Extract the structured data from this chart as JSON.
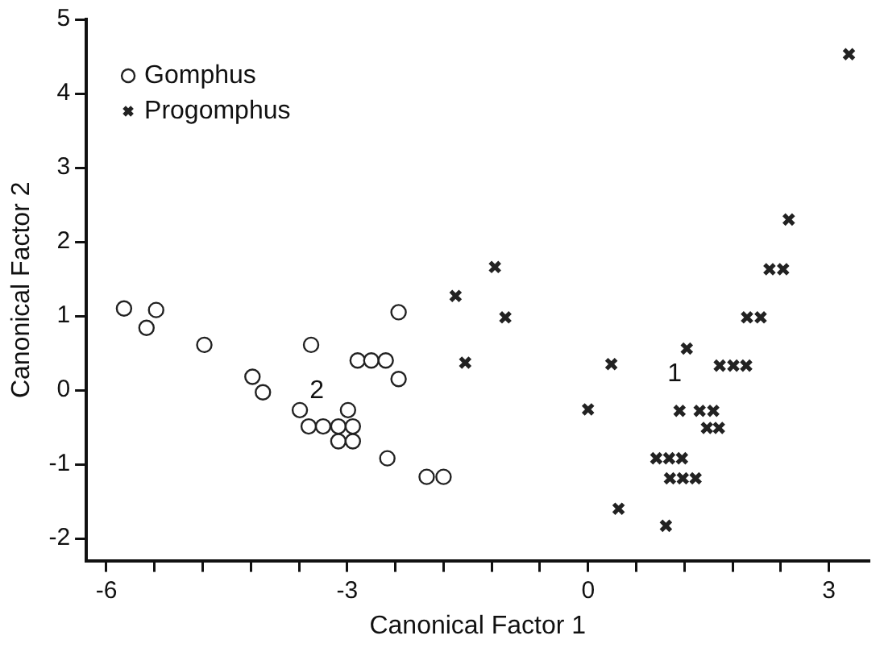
{
  "chart_data": {
    "type": "scatter",
    "xlabel": "Canonical Factor 1",
    "ylabel": "Canonical Factor 2",
    "xlim": [
      -6.25,
      3.5
    ],
    "ylim": [
      -2.3,
      5
    ],
    "xticks": [
      -6,
      {
        "value": -5.4,
        "label": null
      },
      {
        "value": -4.8,
        "label": null
      },
      {
        "value": -4.2,
        "label": null
      },
      {
        "value": -3.6,
        "label": null
      },
      -3,
      {
        "value": -2.4,
        "label": null
      },
      {
        "value": -1.8,
        "label": null
      },
      {
        "value": -1.2,
        "label": null
      },
      {
        "value": -0.6,
        "label": null
      },
      0,
      {
        "value": 0.6,
        "label": null
      },
      {
        "value": 1.2,
        "label": null
      },
      {
        "value": 1.8,
        "label": null
      },
      {
        "value": 2.4,
        "label": null
      },
      3
    ],
    "yticks": [
      -2,
      -1,
      0,
      1,
      2,
      3,
      4,
      5
    ],
    "grid": false,
    "legend": "top left",
    "series": [
      {
        "name": "Gomphus",
        "color": "#222222",
        "marker": "circle",
        "x": [
          -5.78,
          -5.38,
          -5.5,
          -4.78,
          -4.18,
          -4.05,
          -3.45,
          -2.36,
          -2.87,
          -2.7,
          -2.52,
          -2.36,
          -3.59,
          -2.99,
          -3.48,
          -3.3,
          -3.11,
          -2.93,
          -3.11,
          -2.93,
          -2.5,
          -2.01,
          -1.8
        ],
        "values": [
          1.1,
          1.08,
          0.84,
          0.61,
          0.18,
          -0.03,
          0.61,
          1.05,
          0.4,
          0.4,
          0.4,
          0.15,
          -0.27,
          -0.27,
          -0.49,
          -0.49,
          -0.49,
          -0.49,
          -0.69,
          -0.69,
          -0.92,
          -1.17,
          -1.17
        ]
      },
      {
        "name": "Progomphus",
        "color": "#222222",
        "marker": "cross",
        "x": [
          3.25,
          2.5,
          2.26,
          2.43,
          1.98,
          2.15,
          1.64,
          1.81,
          1.97,
          1.23,
          1.14,
          1.39,
          1.56,
          1.48,
          1.63,
          0.85,
          1.01,
          1.17,
          1.02,
          1.18,
          1.34,
          0.38,
          0.97,
          0.0,
          0.29,
          -1.65,
          -1.16,
          -1.03,
          -1.53
        ],
        "values": [
          4.53,
          2.3,
          1.63,
          1.63,
          0.98,
          0.98,
          0.33,
          0.33,
          0.33,
          0.56,
          -0.28,
          -0.28,
          -0.28,
          -0.51,
          -0.51,
          -0.92,
          -0.92,
          -0.92,
          -1.19,
          -1.19,
          -1.19,
          -1.6,
          -1.83,
          -0.26,
          0.35,
          1.27,
          1.66,
          0.98,
          0.37
        ]
      }
    ],
    "annotations": [
      "2",
      "1"
    ]
  }
}
